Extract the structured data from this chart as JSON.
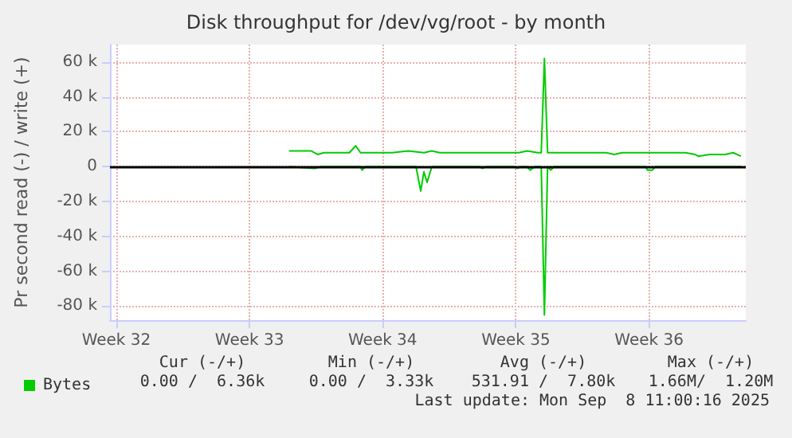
{
  "chart_data": {
    "type": "line",
    "title": "Disk throughput for /dev/vg/root - by month",
    "ylabel": "Pr second read (-) / write (+)",
    "xlim": [
      "2025-08-06T04:00",
      "2025-09-08T14:00"
    ],
    "xticks": [
      {
        "value": "2025-08-06T12:00",
        "label": "Week 32"
      },
      {
        "value": "2025-08-13T12:00",
        "label": "Week 33"
      },
      {
        "value": "2025-08-20T12:00",
        "label": "Week 34"
      },
      {
        "value": "2025-08-27T12:00",
        "label": "Week 35"
      },
      {
        "value": "2025-09-03T12:00",
        "label": "Week 36"
      }
    ],
    "ylim": [
      -88000,
      70000
    ],
    "yticks": [
      {
        "value": -80000,
        "label": "-80 k"
      },
      {
        "value": -60000,
        "label": "-60 k"
      },
      {
        "value": -40000,
        "label": "-40 k"
      },
      {
        "value": -20000,
        "label": "-20 k"
      },
      0,
      {
        "value": 20000,
        "label": "20 k"
      },
      {
        "value": 40000,
        "label": "40 k"
      },
      {
        "value": 60000,
        "label": "60 k"
      }
    ],
    "grid": true,
    "legend": "bottom left",
    "marker": "none",
    "line_style": "solid",
    "ref_lines": [
      {
        "axis": "y",
        "value": 0,
        "label": null,
        "color": "#000000"
      }
    ],
    "series": [
      {
        "name": "Bytes",
        "color": "#00cc00",
        "x": [
          "2025-08-15T14:00",
          "2025-08-16T10:00",
          "2025-08-16T18:00",
          "2025-08-17T02:00",
          "2025-08-17T10:00",
          "2025-08-18T02:00",
          "2025-08-18T18:00",
          "2025-08-19T02:00",
          "2025-08-19T08:00",
          "2025-08-20T04:00",
          "2025-08-21T00:00",
          "2025-08-21T20:00",
          "2025-08-22T16:00",
          "2025-08-23T02:00",
          "2025-08-23T12:00",
          "2025-08-24T08:00",
          "2025-08-25T04:00",
          "2025-08-26T00:00",
          "2025-08-26T20:00",
          "2025-08-27T16:00",
          "2025-08-28T02:00",
          "2025-08-28T16:00",
          "2025-08-28T20:00",
          "2025-08-29T00:00",
          "2025-08-29T04:00",
          "2025-08-29T10:00",
          "2025-08-30T04:00",
          "2025-08-31T00:00",
          "2025-08-31T14:00",
          "2025-09-01T06:00",
          "2025-09-01T16:00",
          "2025-09-02T02:00",
          "2025-09-02T22:00",
          "2025-09-03T18:00",
          "2025-09-04T14:00",
          "2025-09-05T10:00",
          "2025-09-05T22:00",
          "2025-09-06T02:00",
          "2025-09-06T16:00",
          "2025-09-07T02:00",
          "2025-09-07T12:00",
          "2025-09-07T22:00",
          "2025-09-08T08:00"
        ],
        "values": [
          9000,
          9000,
          9000,
          7000,
          8000,
          8000,
          8000,
          12000,
          8000,
          8000,
          8000,
          9000,
          8000,
          9000,
          8000,
          8000,
          8000,
          8000,
          8000,
          8000,
          9000,
          8000,
          8000,
          62000,
          8000,
          8000,
          8000,
          8000,
          8000,
          8000,
          7000,
          8000,
          8000,
          8000,
          8000,
          8000,
          7000,
          6000,
          7000,
          7000,
          7000,
          8000,
          6000
        ]
      },
      {
        "color": "#00cc00",
        "x": [
          "2025-08-15T14:00",
          "2025-08-16T22:00",
          "2025-08-17T06:00",
          "2025-08-19T08:00",
          "2025-08-19T10:00",
          "2025-08-19T14:00",
          "2025-08-22T06:00",
          "2025-08-22T12:00",
          "2025-08-22T16:00",
          "2025-08-22T20:00",
          "2025-08-22T22:00",
          "2025-08-23T02:00",
          "2025-08-25T14:00",
          "2025-08-25T18:00",
          "2025-08-25T22:00",
          "2025-08-27T10:00",
          "2025-08-27T14:00",
          "2025-08-27T18:00",
          "2025-08-28T02:00",
          "2025-08-28T06:00",
          "2025-08-28T12:00",
          "2025-08-28T20:00",
          "2025-08-29T00:00",
          "2025-08-29T04:00",
          "2025-08-29T08:00",
          "2025-08-29T12:00",
          "2025-09-03T08:00",
          "2025-09-03T10:00",
          "2025-09-03T16:00",
          "2025-09-03T20:00",
          "2025-09-08T08:00"
        ],
        "values": [
          0,
          -1000,
          0,
          0,
          -2000,
          0,
          0,
          -14000,
          -3000,
          -9000,
          -6000,
          0,
          0,
          -1000,
          0,
          0,
          -1000,
          0,
          0,
          -2000,
          0,
          0,
          -85000,
          0,
          -2000,
          0,
          0,
          -2000,
          -2000,
          0,
          0
        ]
      }
    ],
    "annotations": [
      "Cur (-/+)",
      "Min (-/+)",
      "Avg (-/+)",
      "Max (-/+)",
      "0.00 /  6.36k",
      "0.00 /  3.33k",
      "531.91 /  7.80k",
      "1.66M/  1.20M",
      "Last update: Mon Sep  8 11:00:16 2025"
    ]
  }
}
